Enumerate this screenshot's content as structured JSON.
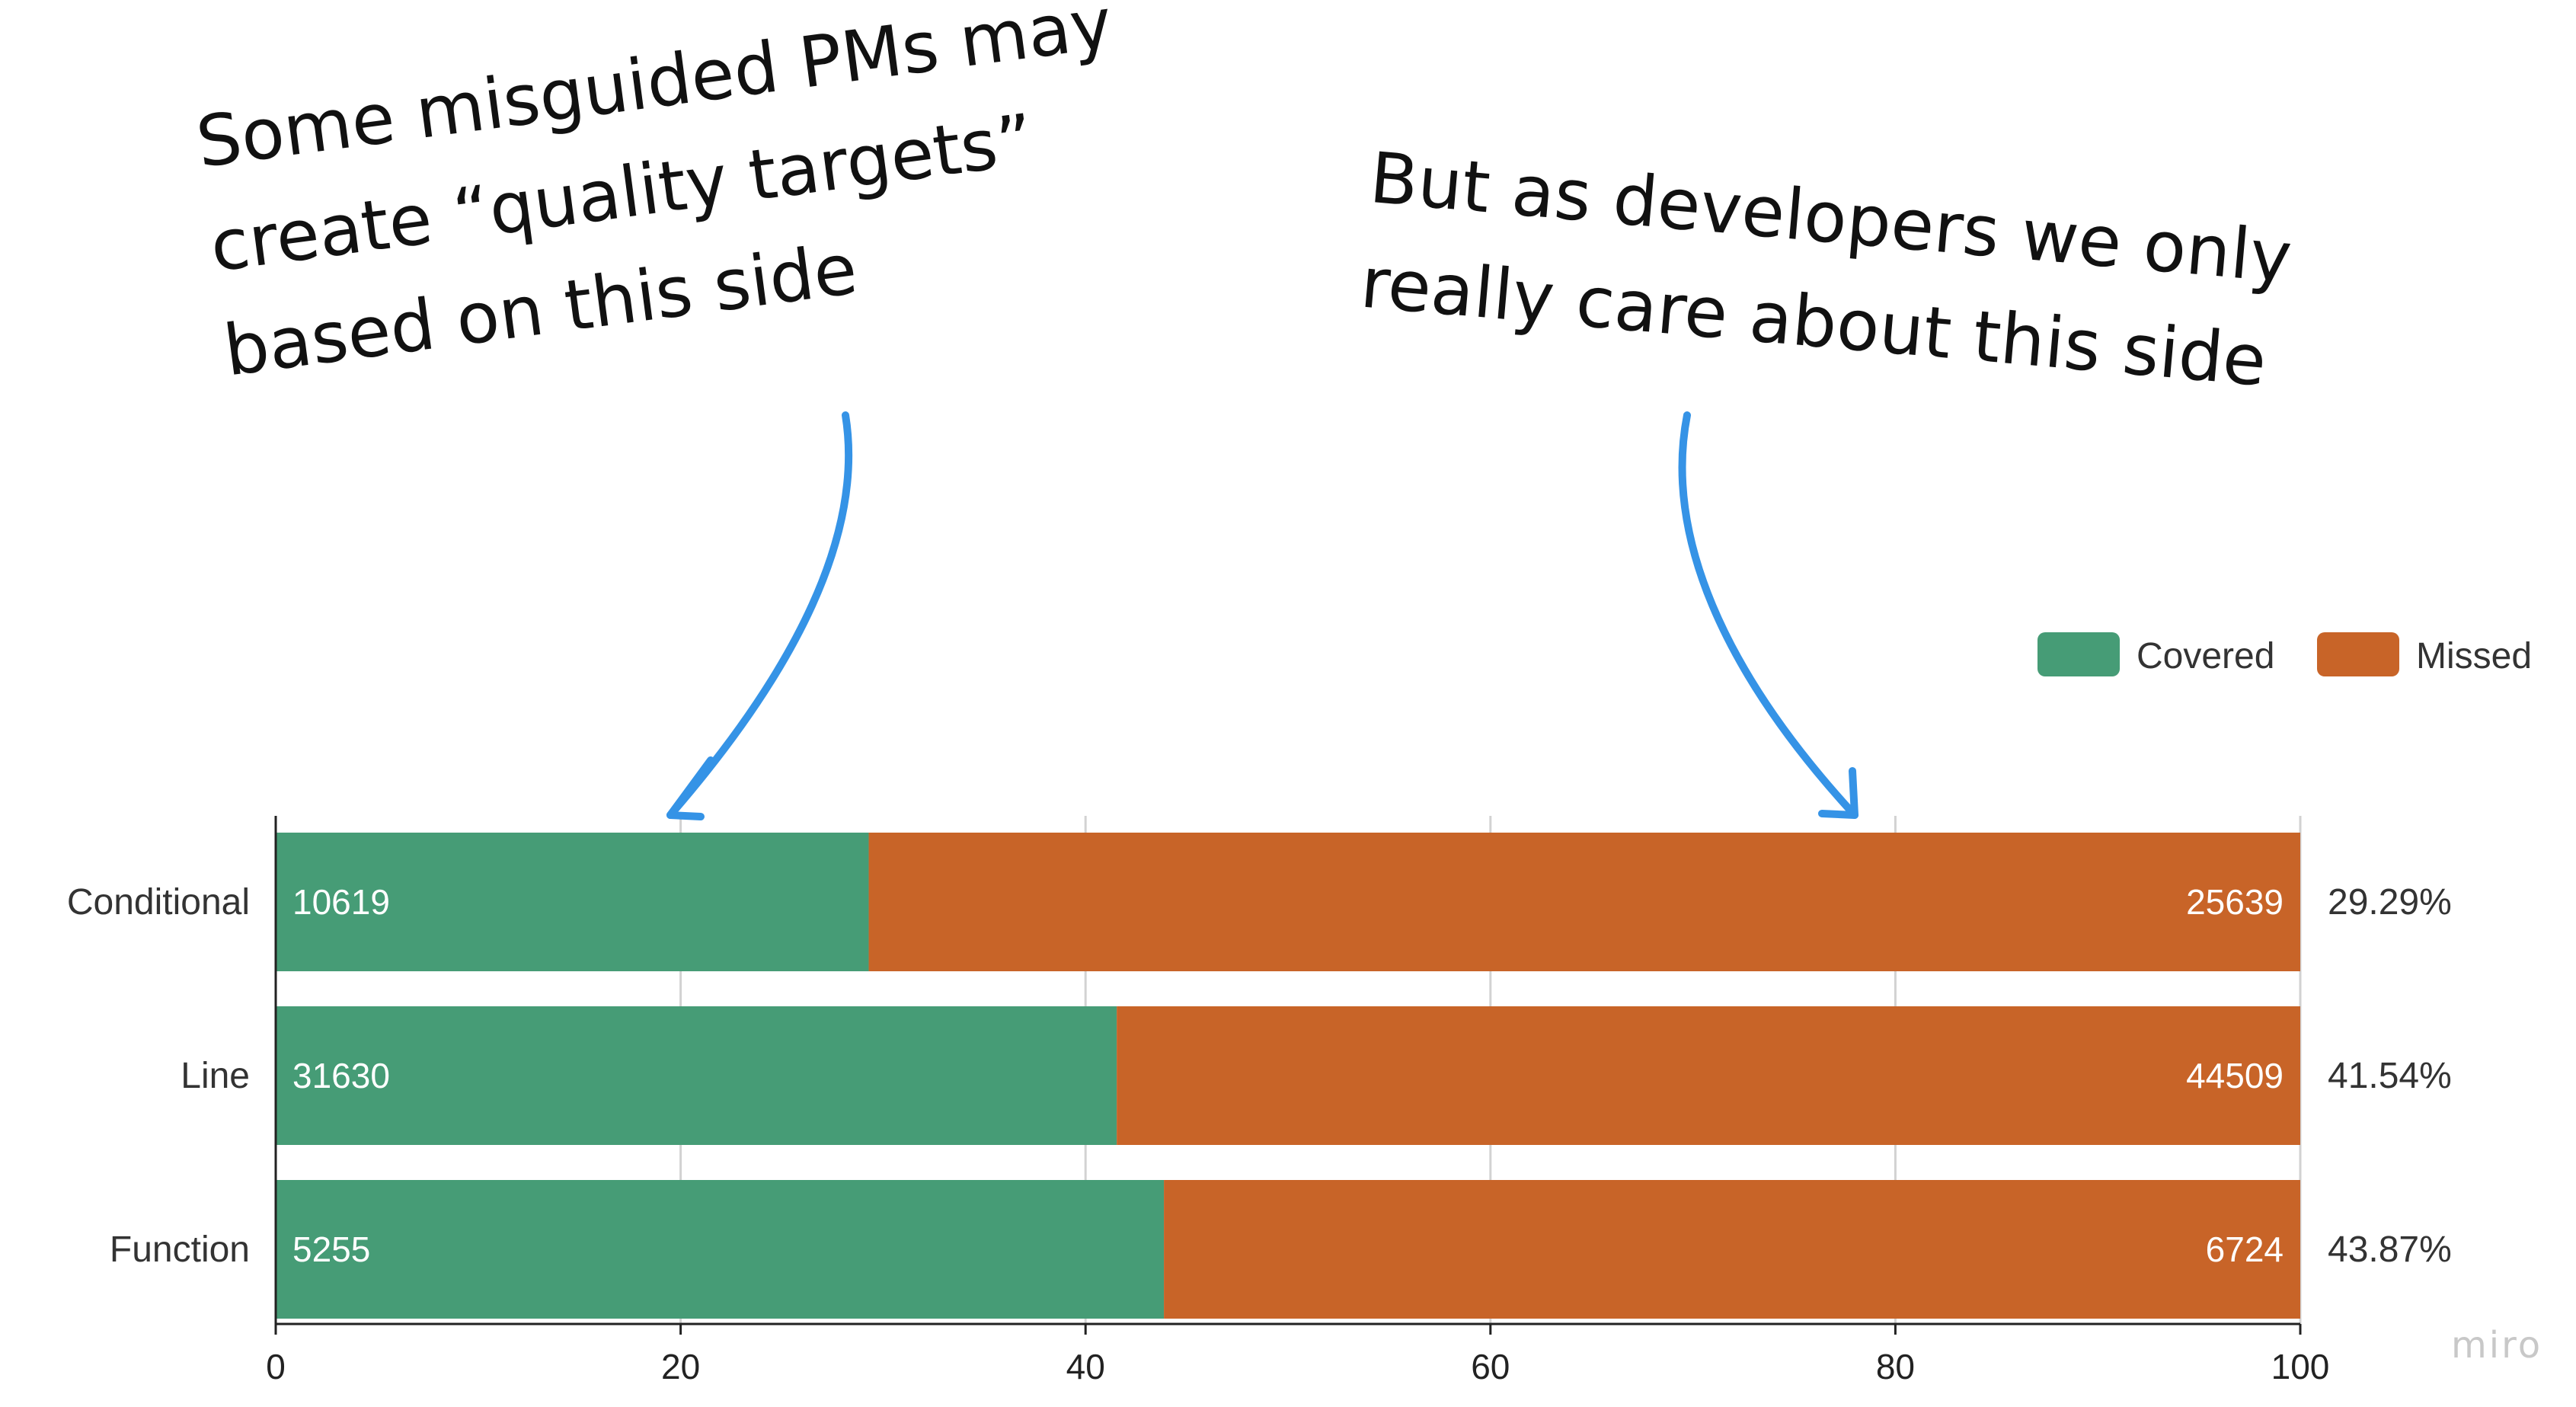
{
  "annotations": {
    "left_note": [
      "Some misguided PMs may",
      "create “quality targets”",
      "based on this side"
    ],
    "right_note": [
      "But as developers we only",
      "really care about this side"
    ],
    "arrow_color": "#3593e6"
  },
  "watermark": "miro",
  "chart_data": {
    "type": "bar",
    "orientation": "horizontal",
    "stacked": true,
    "categories": [
      "Conditional",
      "Line",
      "Function"
    ],
    "series": [
      {
        "name": "Covered",
        "color": "#469c76",
        "counts": [
          10619,
          31630,
          5255
        ],
        "values": [
          29.29,
          41.54,
          43.87
        ]
      },
      {
        "name": "Missed",
        "color": "#c86428",
        "counts": [
          25639,
          44509,
          6724
        ],
        "values": [
          70.71,
          58.46,
          56.13
        ]
      }
    ],
    "percent_labels": [
      "29.29%",
      "41.54%",
      "43.87%"
    ],
    "xlim": [
      0,
      100
    ],
    "xticks": [
      0,
      20,
      40,
      60,
      80,
      100
    ],
    "grid": true,
    "legend": "top-right"
  }
}
